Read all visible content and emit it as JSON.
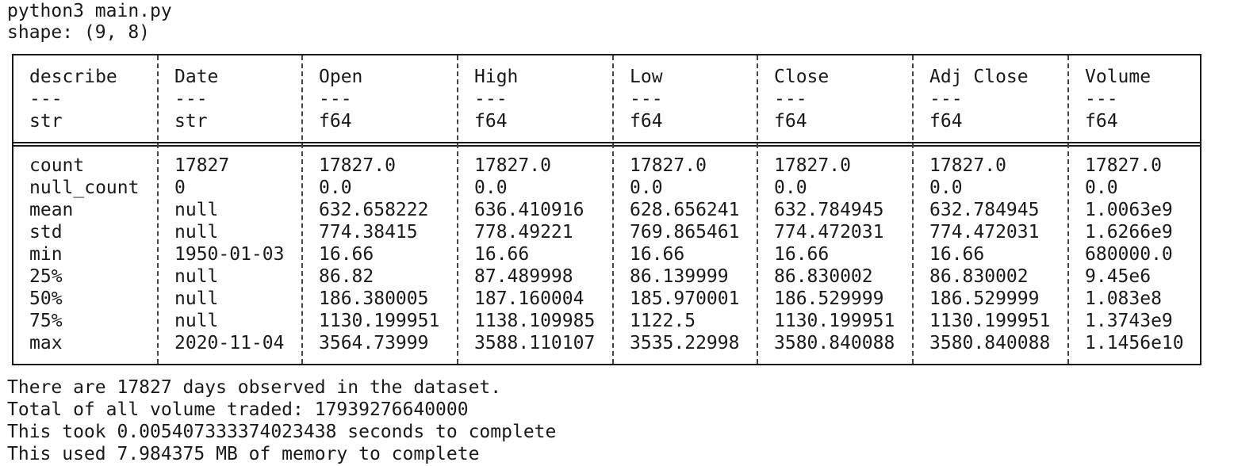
{
  "terminal": {
    "command": "python3 main.py",
    "shape_line": "shape: (9, 8)",
    "output_lines": [
      "There are 17827 days observed in the dataset.",
      "Total of all volume traded: 17939276640000",
      "This took 0.005407333374023438 seconds to complete",
      "This used 7.984375 MB of memory to complete"
    ]
  },
  "table": {
    "columns": [
      {
        "name": "describe",
        "dash": "---",
        "dtype": "str",
        "values": [
          "count",
          "null_count",
          "mean",
          "std",
          "min",
          "25%",
          "50%",
          "75%",
          "max"
        ]
      },
      {
        "name": "Date",
        "dash": "---",
        "dtype": "str",
        "values": [
          "17827",
          "0",
          "null",
          "null",
          "1950-01-03",
          "null",
          "null",
          "null",
          "2020-11-04"
        ]
      },
      {
        "name": "Open",
        "dash": "---",
        "dtype": "f64",
        "values": [
          "17827.0",
          "0.0",
          "632.658222",
          "774.38415",
          "16.66",
          "86.82",
          "186.380005",
          "1130.199951",
          "3564.73999"
        ]
      },
      {
        "name": "High",
        "dash": "---",
        "dtype": "f64",
        "values": [
          "17827.0",
          "0.0",
          "636.410916",
          "778.49221",
          "16.66",
          "87.489998",
          "187.160004",
          "1138.109985",
          "3588.110107"
        ]
      },
      {
        "name": "Low",
        "dash": "---",
        "dtype": "f64",
        "values": [
          "17827.0",
          "0.0",
          "628.656241",
          "769.865461",
          "16.66",
          "86.139999",
          "185.970001",
          "1122.5",
          "3535.22998"
        ]
      },
      {
        "name": "Close",
        "dash": "---",
        "dtype": "f64",
        "values": [
          "17827.0",
          "0.0",
          "632.784945",
          "774.472031",
          "16.66",
          "86.830002",
          "186.529999",
          "1130.199951",
          "3580.840088"
        ]
      },
      {
        "name": "Adj Close",
        "dash": "---",
        "dtype": "f64",
        "values": [
          "17827.0",
          "0.0",
          "632.784945",
          "774.472031",
          "16.66",
          "86.830002",
          "186.529999",
          "1130.199951",
          "3580.840088"
        ]
      },
      {
        "name": "Volume",
        "dash": "---",
        "dtype": "f64",
        "values": [
          "17827.0",
          "0.0",
          "1.0063e9",
          "1.6266e9",
          "680000.0",
          "9.45e6",
          "1.083e8",
          "1.3743e9",
          "1.1456e10"
        ]
      }
    ]
  }
}
